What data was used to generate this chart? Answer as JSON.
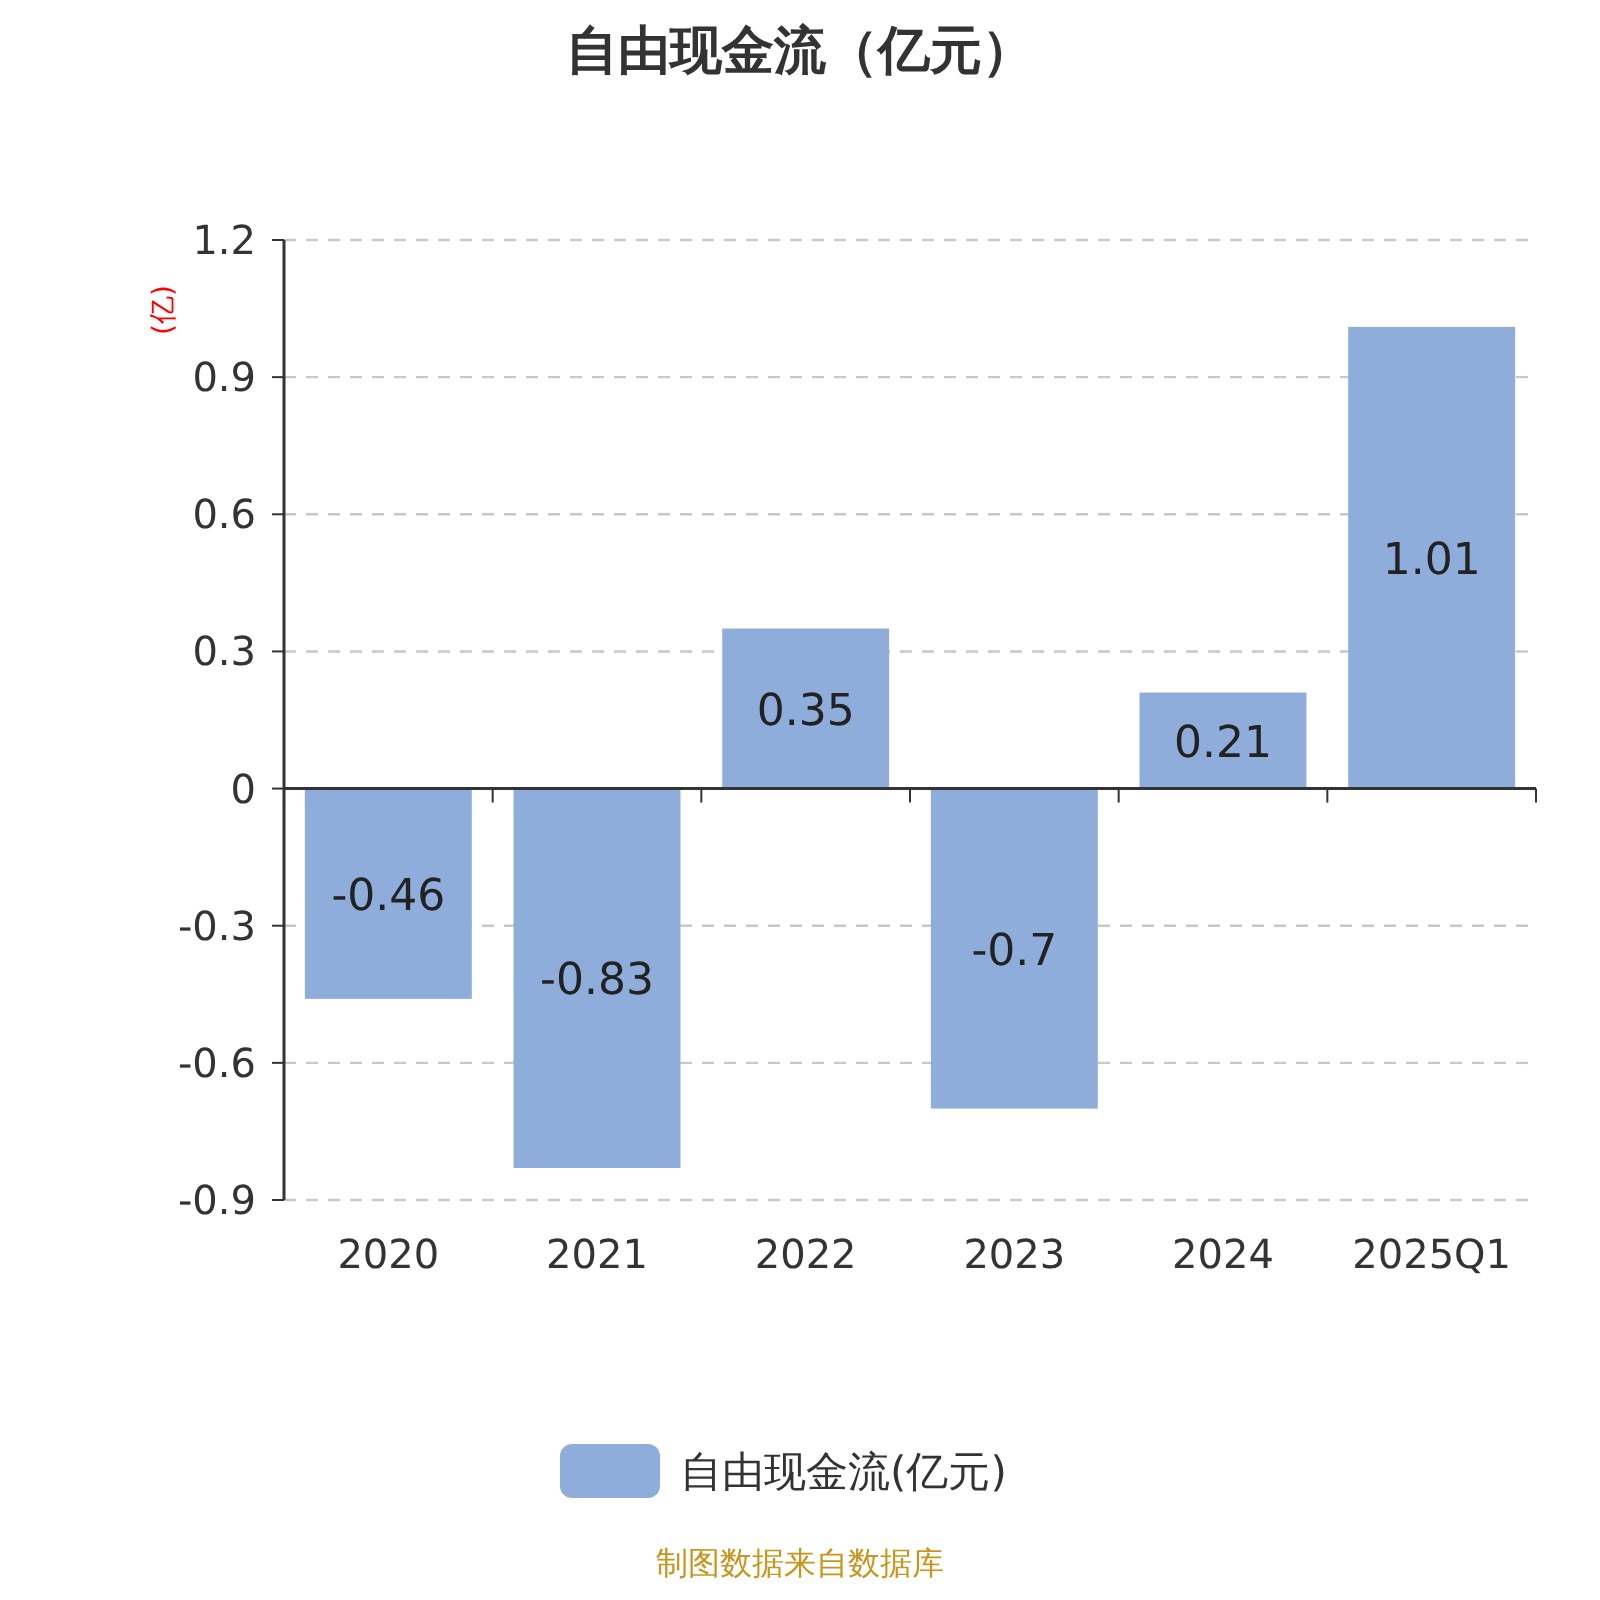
{
  "chart_data": {
    "type": "bar",
    "title": "自由现金流（亿元）",
    "ylabel": "(亿)",
    "categories": [
      "2020",
      "2021",
      "2022",
      "2023",
      "2024",
      "2025Q1"
    ],
    "series": [
      {
        "name": "自由现金流(亿元)",
        "color": "#8eaddb",
        "values": [
          -0.46,
          -0.83,
          0.35,
          -0.7,
          0.21,
          1.01
        ]
      }
    ],
    "ylim": [
      -0.9,
      1.2
    ],
    "yticks": [
      -0.9,
      -0.6,
      -0.3,
      0,
      0.3,
      0.6,
      0.9,
      1.2
    ],
    "grid": "y",
    "legend": "bottom",
    "data_labels": true,
    "annotations": [
      "制图数据来自数据库"
    ]
  }
}
